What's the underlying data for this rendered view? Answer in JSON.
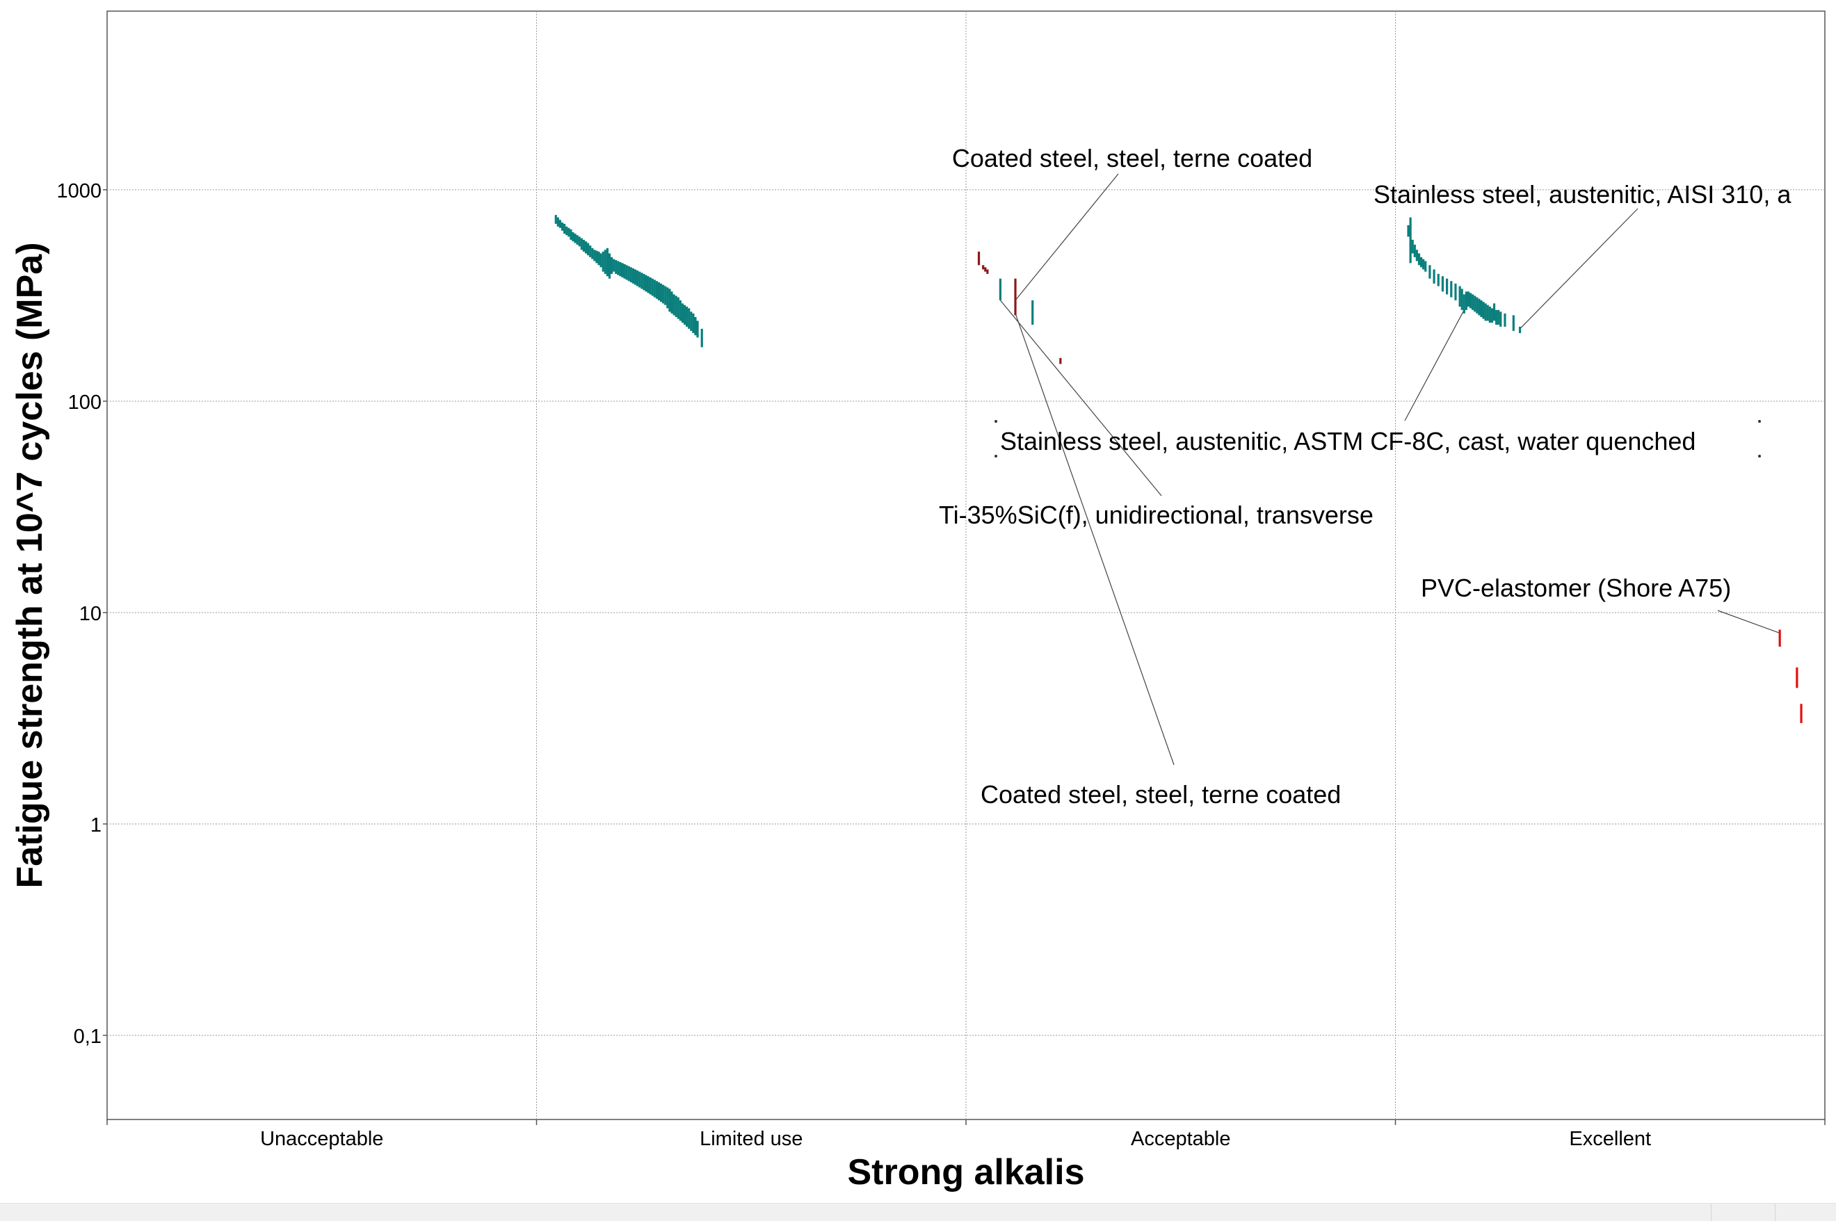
{
  "chart_data": {
    "type": "scatter",
    "title": "",
    "xlabel": "Strong alkalis",
    "ylabel": "Fatigue strength at 10^7 cycles (MPa)",
    "y_scale": "log",
    "ylim": [
      0.04,
      7000
    ],
    "categories": [
      "Unacceptable",
      "Limited use",
      "Acceptable",
      "Excellent"
    ],
    "y_tick_labels": [
      "0,1",
      "1",
      "10",
      "100",
      "1000"
    ],
    "y_tick_values": [
      0.1,
      1,
      10,
      100,
      1000
    ],
    "grid": true,
    "legend": "none",
    "colors": {
      "teal": "#0b7f7c",
      "darkred": "#8b1a1a",
      "red": "#e01010",
      "grid": "#9a9a9a",
      "axis": "#555555"
    },
    "series": [
      {
        "category": "Limited use",
        "color": "teal",
        "points": [
          {
            "x": 0.045,
            "lo": 690,
            "hi": 760
          },
          {
            "x": 0.05,
            "lo": 670,
            "hi": 740
          },
          {
            "x": 0.055,
            "lo": 660,
            "hi": 720
          },
          {
            "x": 0.06,
            "lo": 640,
            "hi": 700
          },
          {
            "x": 0.065,
            "lo": 620,
            "hi": 690
          },
          {
            "x": 0.07,
            "lo": 610,
            "hi": 670
          },
          {
            "x": 0.075,
            "lo": 600,
            "hi": 660
          },
          {
            "x": 0.08,
            "lo": 580,
            "hi": 650
          },
          {
            "x": 0.085,
            "lo": 570,
            "hi": 630
          },
          {
            "x": 0.09,
            "lo": 560,
            "hi": 620
          },
          {
            "x": 0.095,
            "lo": 550,
            "hi": 610
          },
          {
            "x": 0.1,
            "lo": 540,
            "hi": 600
          },
          {
            "x": 0.105,
            "lo": 520,
            "hi": 590
          },
          {
            "x": 0.11,
            "lo": 510,
            "hi": 580
          },
          {
            "x": 0.115,
            "lo": 500,
            "hi": 570
          },
          {
            "x": 0.12,
            "lo": 490,
            "hi": 560
          },
          {
            "x": 0.125,
            "lo": 480,
            "hi": 545
          },
          {
            "x": 0.13,
            "lo": 470,
            "hi": 530
          },
          {
            "x": 0.135,
            "lo": 460,
            "hi": 520
          },
          {
            "x": 0.14,
            "lo": 450,
            "hi": 515
          },
          {
            "x": 0.145,
            "lo": 440,
            "hi": 510
          },
          {
            "x": 0.15,
            "lo": 430,
            "hi": 500
          },
          {
            "x": 0.155,
            "lo": 410,
            "hi": 510
          },
          {
            "x": 0.16,
            "lo": 400,
            "hi": 520
          },
          {
            "x": 0.165,
            "lo": 390,
            "hi": 530
          },
          {
            "x": 0.17,
            "lo": 380,
            "hi": 500
          },
          {
            "x": 0.175,
            "lo": 400,
            "hi": 480
          },
          {
            "x": 0.18,
            "lo": 410,
            "hi": 470
          },
          {
            "x": 0.185,
            "lo": 400,
            "hi": 465
          },
          {
            "x": 0.19,
            "lo": 395,
            "hi": 460
          },
          {
            "x": 0.195,
            "lo": 390,
            "hi": 455
          },
          {
            "x": 0.2,
            "lo": 385,
            "hi": 450
          },
          {
            "x": 0.205,
            "lo": 380,
            "hi": 445
          },
          {
            "x": 0.21,
            "lo": 375,
            "hi": 440
          },
          {
            "x": 0.215,
            "lo": 370,
            "hi": 435
          },
          {
            "x": 0.22,
            "lo": 365,
            "hi": 430
          },
          {
            "x": 0.225,
            "lo": 360,
            "hi": 425
          },
          {
            "x": 0.23,
            "lo": 355,
            "hi": 420
          },
          {
            "x": 0.235,
            "lo": 350,
            "hi": 415
          },
          {
            "x": 0.24,
            "lo": 345,
            "hi": 410
          },
          {
            "x": 0.245,
            "lo": 340,
            "hi": 405
          },
          {
            "x": 0.25,
            "lo": 335,
            "hi": 400
          },
          {
            "x": 0.255,
            "lo": 330,
            "hi": 395
          },
          {
            "x": 0.26,
            "lo": 325,
            "hi": 390
          },
          {
            "x": 0.265,
            "lo": 320,
            "hi": 385
          },
          {
            "x": 0.27,
            "lo": 315,
            "hi": 380
          },
          {
            "x": 0.275,
            "lo": 310,
            "hi": 375
          },
          {
            "x": 0.28,
            "lo": 305,
            "hi": 370
          },
          {
            "x": 0.285,
            "lo": 300,
            "hi": 365
          },
          {
            "x": 0.29,
            "lo": 295,
            "hi": 360
          },
          {
            "x": 0.295,
            "lo": 290,
            "hi": 355
          },
          {
            "x": 0.3,
            "lo": 285,
            "hi": 350
          },
          {
            "x": 0.305,
            "lo": 275,
            "hi": 345
          },
          {
            "x": 0.31,
            "lo": 265,
            "hi": 340
          },
          {
            "x": 0.315,
            "lo": 260,
            "hi": 330
          },
          {
            "x": 0.32,
            "lo": 255,
            "hi": 320
          },
          {
            "x": 0.325,
            "lo": 250,
            "hi": 315
          },
          {
            "x": 0.33,
            "lo": 245,
            "hi": 310
          },
          {
            "x": 0.335,
            "lo": 240,
            "hi": 300
          },
          {
            "x": 0.34,
            "lo": 235,
            "hi": 290
          },
          {
            "x": 0.345,
            "lo": 230,
            "hi": 285
          },
          {
            "x": 0.35,
            "lo": 225,
            "hi": 280
          },
          {
            "x": 0.355,
            "lo": 220,
            "hi": 275
          },
          {
            "x": 0.36,
            "lo": 215,
            "hi": 265
          },
          {
            "x": 0.365,
            "lo": 210,
            "hi": 260
          },
          {
            "x": 0.37,
            "lo": 205,
            "hi": 250
          },
          {
            "x": 0.375,
            "lo": 200,
            "hi": 240
          },
          {
            "x": 0.385,
            "lo": 180,
            "hi": 220
          }
        ]
      },
      {
        "category": "Acceptable",
        "color": "darkred",
        "points": [
          {
            "x": 0.03,
            "lo": 440,
            "hi": 510
          },
          {
            "x": 0.04,
            "lo": 420,
            "hi": 440
          },
          {
            "x": 0.045,
            "lo": 410,
            "hi": 430
          },
          {
            "x": 0.05,
            "lo": 400,
            "hi": 420
          },
          {
            "x": 0.115,
            "lo": 255,
            "hi": 380
          },
          {
            "x": 0.22,
            "lo": 150,
            "hi": 160
          }
        ]
      },
      {
        "category": "Acceptable",
        "color": "teal",
        "points": [
          {
            "x": 0.08,
            "lo": 300,
            "hi": 380
          },
          {
            "x": 0.155,
            "lo": 230,
            "hi": 300
          }
        ]
      },
      {
        "category": "Excellent",
        "color": "teal",
        "points": [
          {
            "x": 0.03,
            "lo": 600,
            "hi": 680
          },
          {
            "x": 0.035,
            "lo": 450,
            "hi": 740
          },
          {
            "x": 0.04,
            "lo": 500,
            "hi": 580
          },
          {
            "x": 0.045,
            "lo": 480,
            "hi": 550
          },
          {
            "x": 0.05,
            "lo": 460,
            "hi": 520
          },
          {
            "x": 0.055,
            "lo": 440,
            "hi": 500
          },
          {
            "x": 0.06,
            "lo": 430,
            "hi": 480
          },
          {
            "x": 0.065,
            "lo": 420,
            "hi": 470
          },
          {
            "x": 0.07,
            "lo": 410,
            "hi": 460
          },
          {
            "x": 0.08,
            "lo": 380,
            "hi": 440
          },
          {
            "x": 0.09,
            "lo": 360,
            "hi": 420
          },
          {
            "x": 0.1,
            "lo": 350,
            "hi": 400
          },
          {
            "x": 0.11,
            "lo": 330,
            "hi": 390
          },
          {
            "x": 0.12,
            "lo": 320,
            "hi": 380
          },
          {
            "x": 0.13,
            "lo": 310,
            "hi": 370
          },
          {
            "x": 0.14,
            "lo": 300,
            "hi": 360
          },
          {
            "x": 0.15,
            "lo": 280,
            "hi": 350
          },
          {
            "x": 0.155,
            "lo": 270,
            "hi": 340
          },
          {
            "x": 0.16,
            "lo": 260,
            "hi": 320
          },
          {
            "x": 0.165,
            "lo": 270,
            "hi": 330
          },
          {
            "x": 0.17,
            "lo": 280,
            "hi": 330
          },
          {
            "x": 0.175,
            "lo": 275,
            "hi": 325
          },
          {
            "x": 0.18,
            "lo": 270,
            "hi": 320
          },
          {
            "x": 0.185,
            "lo": 265,
            "hi": 315
          },
          {
            "x": 0.19,
            "lo": 260,
            "hi": 310
          },
          {
            "x": 0.195,
            "lo": 255,
            "hi": 305
          },
          {
            "x": 0.2,
            "lo": 250,
            "hi": 300
          },
          {
            "x": 0.205,
            "lo": 245,
            "hi": 295
          },
          {
            "x": 0.21,
            "lo": 240,
            "hi": 290
          },
          {
            "x": 0.215,
            "lo": 240,
            "hi": 285
          },
          {
            "x": 0.22,
            "lo": 235,
            "hi": 280
          },
          {
            "x": 0.225,
            "lo": 235,
            "hi": 275
          },
          {
            "x": 0.23,
            "lo": 240,
            "hi": 290
          },
          {
            "x": 0.235,
            "lo": 230,
            "hi": 270
          },
          {
            "x": 0.24,
            "lo": 230,
            "hi": 270
          },
          {
            "x": 0.245,
            "lo": 225,
            "hi": 265
          },
          {
            "x": 0.255,
            "lo": 225,
            "hi": 260
          },
          {
            "x": 0.275,
            "lo": 215,
            "hi": 255
          },
          {
            "x": 0.29,
            "lo": 210,
            "hi": 225
          }
        ]
      },
      {
        "category": "Excellent",
        "color": "red",
        "points": [
          {
            "x": 0.895,
            "lo": 6.9,
            "hi": 8.3
          },
          {
            "x": 0.935,
            "lo": 4.4,
            "hi": 5.5
          },
          {
            "x": 0.945,
            "lo": 3.0,
            "hi": 3.7
          }
        ]
      }
    ],
    "annotations": [
      {
        "text": "Coated steel, steel, terne coated",
        "category": "Acceptable",
        "x": 0.115,
        "y": 300
      },
      {
        "text": "Stainless steel, austenitic, AISI 310, a",
        "category": "Excellent",
        "x": 0.29,
        "y": 220
      },
      {
        "text": "Stainless steel, austenitic, ASTM CF-8C, cast, water quenched",
        "category": "Excellent",
        "x": 0.16,
        "y": 270
      },
      {
        "text": "Ti-35%SiC(f), unidirectional, transverse",
        "category": "Acceptable",
        "x": 0.08,
        "y": 300
      },
      {
        "text": "Coated steel, steel, terne coated",
        "category": "Acceptable",
        "x": 0.115,
        "y": 260
      },
      {
        "text": "PVC-elastomer (Shore A75)",
        "category": "Excellent",
        "x": 0.895,
        "y": 8.0
      }
    ]
  }
}
